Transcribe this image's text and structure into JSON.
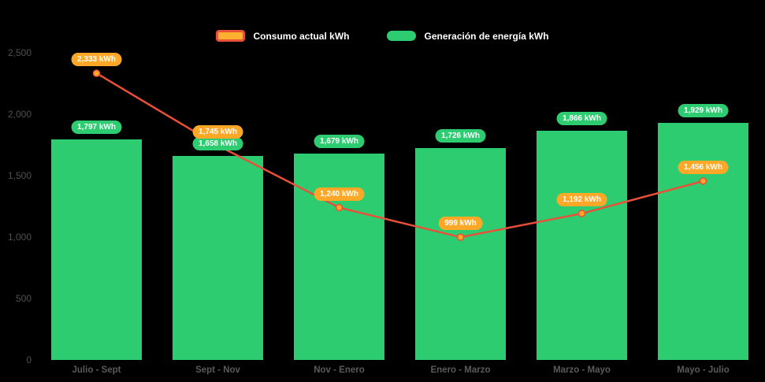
{
  "colors": {
    "background": "#000000",
    "bar_green": "#2ecc71",
    "line_red": "#e8503a",
    "point_orange": "#ffa726",
    "badge_orange": "#ffa726",
    "badge_green": "#2ecc71",
    "legend_text": "#ffffff",
    "axis_text": "#555555"
  },
  "legend": {
    "consumo_label": "Consumo actual kWh",
    "generacion_label": "Generación de energía kWh"
  },
  "chart_data": {
    "type": "bar+line",
    "title": "",
    "xlabel": "",
    "ylabel": "",
    "grid": false,
    "legend_position": "top",
    "ylim": [
      0,
      2500
    ],
    "yticks": [
      0,
      500,
      1000,
      1500,
      2000,
      2500
    ],
    "ytick_labels": [
      "0",
      "500",
      "1,000",
      "1,500",
      "2,000",
      "2,500"
    ],
    "categories": [
      "Julio - Sept",
      "Sept - Nov",
      "Nov - Enero",
      "Enero - Marzo",
      "Marzo - Mayo",
      "Mayo - Julio"
    ],
    "series": [
      {
        "name": "Consumo actual kWh",
        "type": "line",
        "color": "#e8503a",
        "point_color": "#ffa726",
        "values": [
          2333,
          1745,
          1240,
          999,
          1192,
          1456
        ],
        "labels": [
          "2,333 kWh",
          "1,745 kWh",
          "1,240 kWh",
          "999 kWh",
          "1,192 kWh",
          "1,456 kWh"
        ]
      },
      {
        "name": "Generación de energía kWh",
        "type": "bar",
        "color": "#2ecc71",
        "values": [
          1797,
          1658,
          1679,
          1726,
          1866,
          1929
        ],
        "labels": [
          "1,797 kWh",
          "1,658 kWh",
          "1,679 kWh",
          "1,726 kWh",
          "1,866 kWh",
          "1,929 kWh"
        ]
      }
    ]
  }
}
